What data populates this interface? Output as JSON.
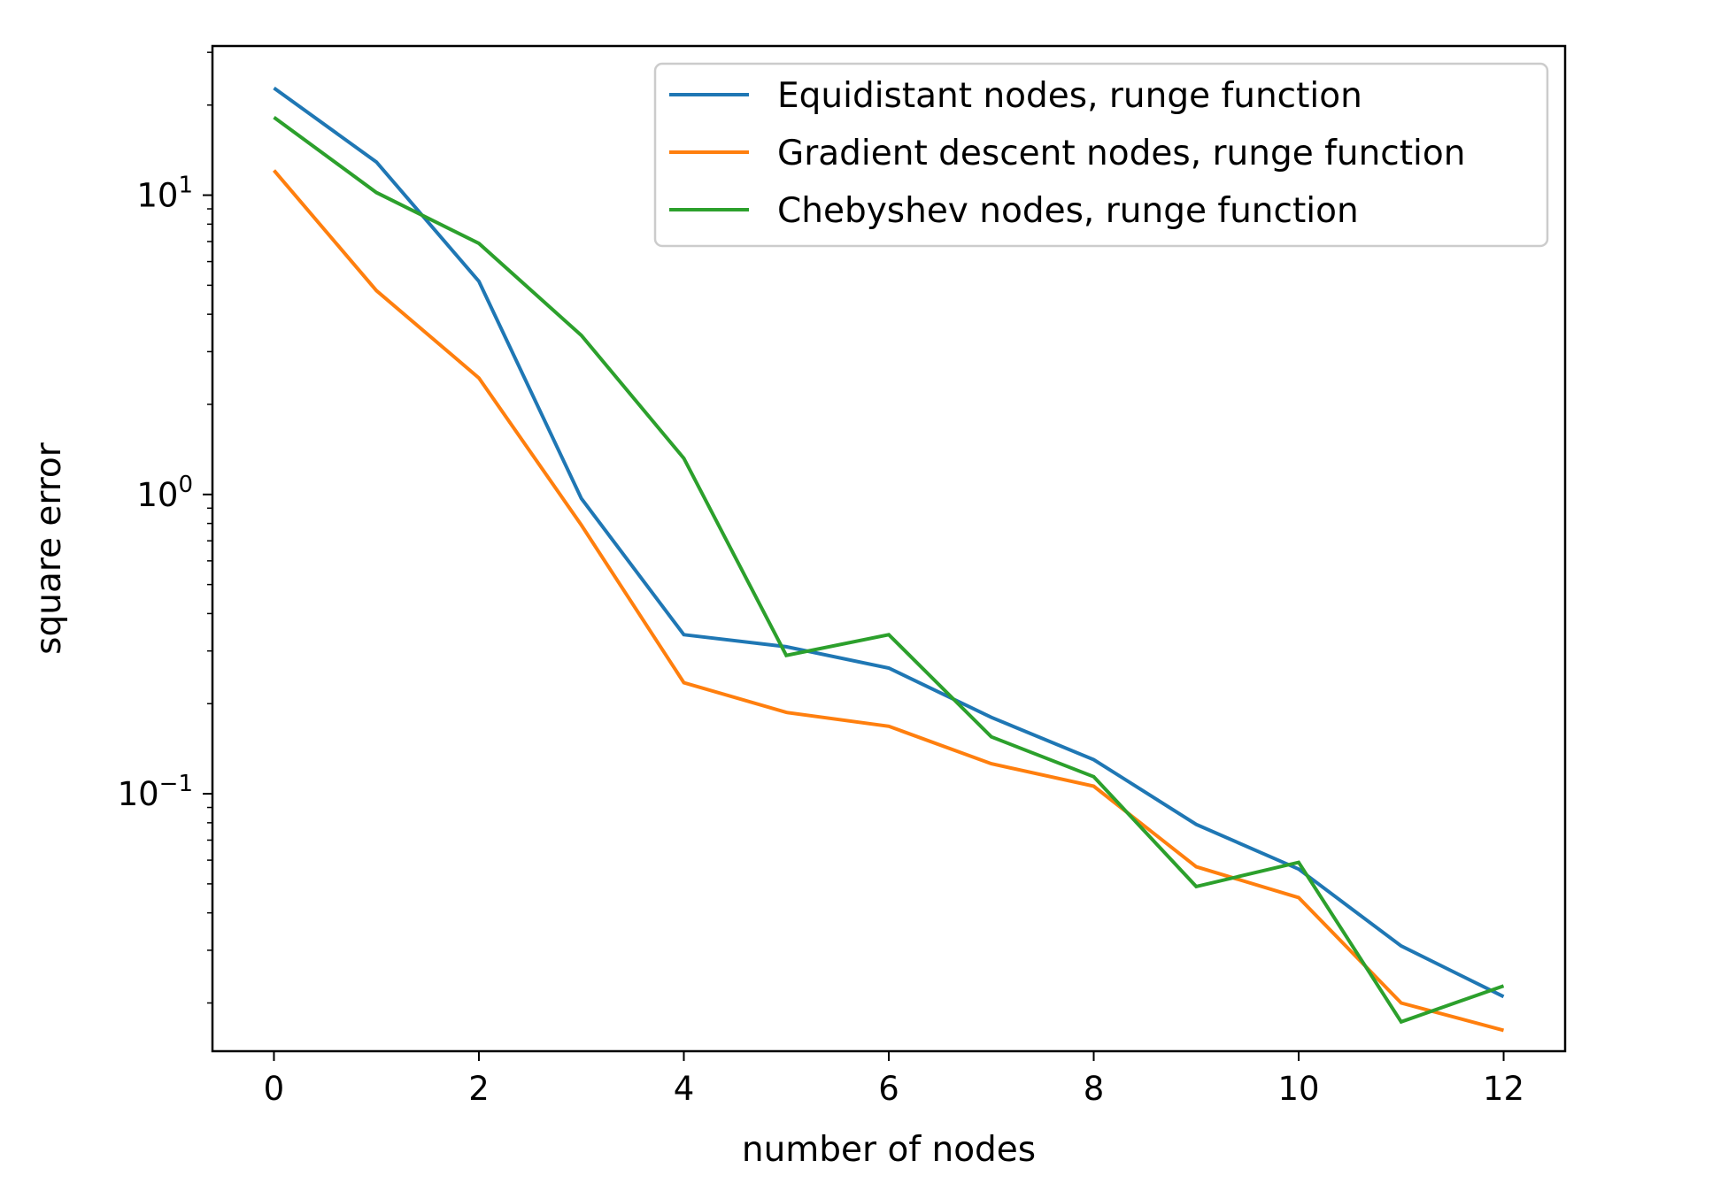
{
  "chart_data": {
    "type": "line",
    "xlabel": "number of nodes",
    "ylabel": "square error",
    "xlim": [
      -0.6,
      12.6
    ],
    "ylim": [
      0.0138,
      31.5
    ],
    "yscale": "log",
    "xticks": [
      0,
      2,
      4,
      6,
      8,
      10,
      12
    ],
    "yticks": [
      {
        "value": 10,
        "base": "10",
        "exp": "1"
      },
      {
        "value": 1,
        "base": "10",
        "exp": "0"
      },
      {
        "value": 0.1,
        "base": "10",
        "exp": "−1"
      }
    ],
    "x": [
      0,
      1,
      2,
      3,
      4,
      5,
      6,
      7,
      8,
      9,
      10,
      11,
      12
    ],
    "series": [
      {
        "name": "Equidistant nodes, runge function",
        "color": "#1f77b4",
        "values": [
          22.8,
          12.9,
          5.15,
          0.97,
          0.34,
          0.31,
          0.263,
          0.18,
          0.13,
          0.079,
          0.056,
          0.031,
          0.021
        ]
      },
      {
        "name": "Gradient descent nodes, runge function",
        "color": "#ff7f0e",
        "values": [
          12.1,
          4.8,
          2.45,
          0.79,
          0.235,
          0.187,
          0.168,
          0.126,
          0.106,
          0.057,
          0.045,
          0.02,
          0.0162
        ]
      },
      {
        "name": "Chebyshev nodes, runge function",
        "color": "#2ca02c",
        "values": [
          18.2,
          10.2,
          6.9,
          3.4,
          1.32,
          0.29,
          0.34,
          0.155,
          0.114,
          0.049,
          0.059,
          0.0173,
          0.0228
        ]
      }
    ],
    "legend_position": "upper right",
    "grid": false
  }
}
